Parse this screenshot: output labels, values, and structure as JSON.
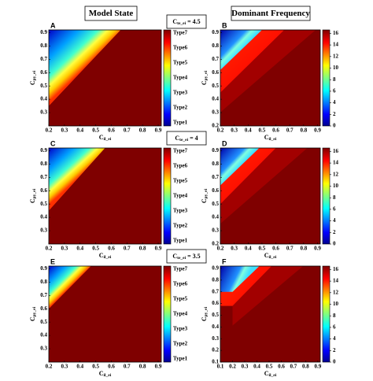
{
  "header": {
    "left": "Model State",
    "right": "Dominant Frequency"
  },
  "conditions": [
    {
      "main": "C",
      "sub": "te_ei",
      "rest": " = 4.5"
    },
    {
      "main": "C",
      "sub": "te_ei",
      "rest": " = 4"
    },
    {
      "main": "C",
      "sub": "te_ei",
      "rest": " = 3.5"
    }
  ],
  "chart_data": [
    {
      "type": "heatmap",
      "label": "A",
      "kind": "state",
      "xlabel": {
        "main": "C",
        "sub": "il_ei"
      },
      "ylabel": {
        "main": "C",
        "sub": "py_ei"
      },
      "xlim": [
        0.2,
        0.92
      ],
      "ylim": [
        0.2,
        0.92
      ],
      "xticks": [
        0.2,
        0.3,
        0.4,
        0.5,
        0.6,
        0.7,
        0.8,
        0.9
      ],
      "yticks": [
        0.3,
        0.4,
        0.5,
        0.6,
        0.7,
        0.8,
        0.9
      ],
      "colorbar_labels": [
        "Type1",
        "Type2",
        "Type3",
        "Type4",
        "Type5",
        "Type6",
        "Type7"
      ]
    },
    {
      "type": "heatmap",
      "label": "B",
      "kind": "frequency",
      "xlabel": {
        "main": "C",
        "sub": "il_ei"
      },
      "ylabel": {
        "main": "C",
        "sub": "py_ei"
      },
      "xlim": [
        0.2,
        0.92
      ],
      "ylim": [
        0.2,
        0.92
      ],
      "xticks": [
        0.2,
        0.3,
        0.4,
        0.5,
        0.6,
        0.7,
        0.8,
        0.9
      ],
      "yticks": [
        0.2,
        0.3,
        0.4,
        0.5,
        0.6,
        0.7,
        0.8,
        0.9
      ],
      "colorbar_lim": [
        0,
        16.6
      ],
      "colorbar_ticks": [
        0,
        2,
        4,
        6,
        8,
        10,
        12,
        14,
        16
      ]
    },
    {
      "type": "heatmap",
      "label": "C",
      "kind": "state",
      "xlabel": {
        "main": "C",
        "sub": "il_ei"
      },
      "ylabel": {
        "main": "C",
        "sub": "py_ei"
      },
      "xlim": [
        0.2,
        0.92
      ],
      "ylim": [
        0.2,
        0.92
      ],
      "xticks": [
        0.2,
        0.3,
        0.4,
        0.5,
        0.6,
        0.7,
        0.8,
        0.9
      ],
      "yticks": [
        0.3,
        0.4,
        0.5,
        0.6,
        0.7,
        0.8,
        0.9
      ],
      "colorbar_labels": [
        "Type1",
        "Type2",
        "Type3",
        "Type4",
        "Type5",
        "Type6",
        "Type7"
      ]
    },
    {
      "type": "heatmap",
      "label": "D",
      "kind": "frequency",
      "xlabel": {
        "main": "C",
        "sub": "il_ei"
      },
      "ylabel": {
        "main": "C",
        "sub": "py_ei"
      },
      "xlim": [
        0.2,
        0.92
      ],
      "ylim": [
        0.2,
        0.92
      ],
      "xticks": [
        0.2,
        0.3,
        0.4,
        0.5,
        0.6,
        0.7,
        0.8,
        0.9
      ],
      "yticks": [
        0.2,
        0.3,
        0.4,
        0.5,
        0.6,
        0.7,
        0.8,
        0.9
      ],
      "colorbar_lim": [
        0,
        16.6
      ],
      "colorbar_ticks": [
        0,
        2,
        4,
        6,
        8,
        10,
        12,
        14,
        16
      ]
    },
    {
      "type": "heatmap",
      "label": "E",
      "kind": "state",
      "xlabel": {
        "main": "C",
        "sub": "il_ei"
      },
      "ylabel": {
        "main": "C",
        "sub": "py_ei"
      },
      "xlim": [
        0.2,
        0.92
      ],
      "ylim": [
        0.2,
        0.92
      ],
      "xticks": [
        0.2,
        0.3,
        0.4,
        0.5,
        0.6,
        0.7,
        0.8,
        0.9
      ],
      "yticks": [
        0.3,
        0.4,
        0.5,
        0.6,
        0.7,
        0.8,
        0.9
      ],
      "colorbar_labels": [
        "Type1",
        "Type2",
        "Type3",
        "Type4",
        "Type5",
        "Type6",
        "Type7"
      ]
    },
    {
      "type": "heatmap",
      "label": "F",
      "kind": "frequency",
      "xlabel": {
        "main": "C",
        "sub": "il_ei"
      },
      "ylabel": {
        "main": "C",
        "sub": "py_ei"
      },
      "xlim": [
        0.1,
        0.92
      ],
      "ylim": [
        0.1,
        0.92
      ],
      "xticks": [
        0.1,
        0.2,
        0.3,
        0.4,
        0.5,
        0.6,
        0.7,
        0.8,
        0.9
      ],
      "yticks": [
        0.1,
        0.2,
        0.3,
        0.4,
        0.5,
        0.6,
        0.7,
        0.8,
        0.9
      ],
      "colorbar_lim": [
        0,
        16.6
      ],
      "colorbar_ticks": [
        0,
        2,
        4,
        6,
        8,
        10,
        12,
        14,
        16
      ]
    }
  ]
}
